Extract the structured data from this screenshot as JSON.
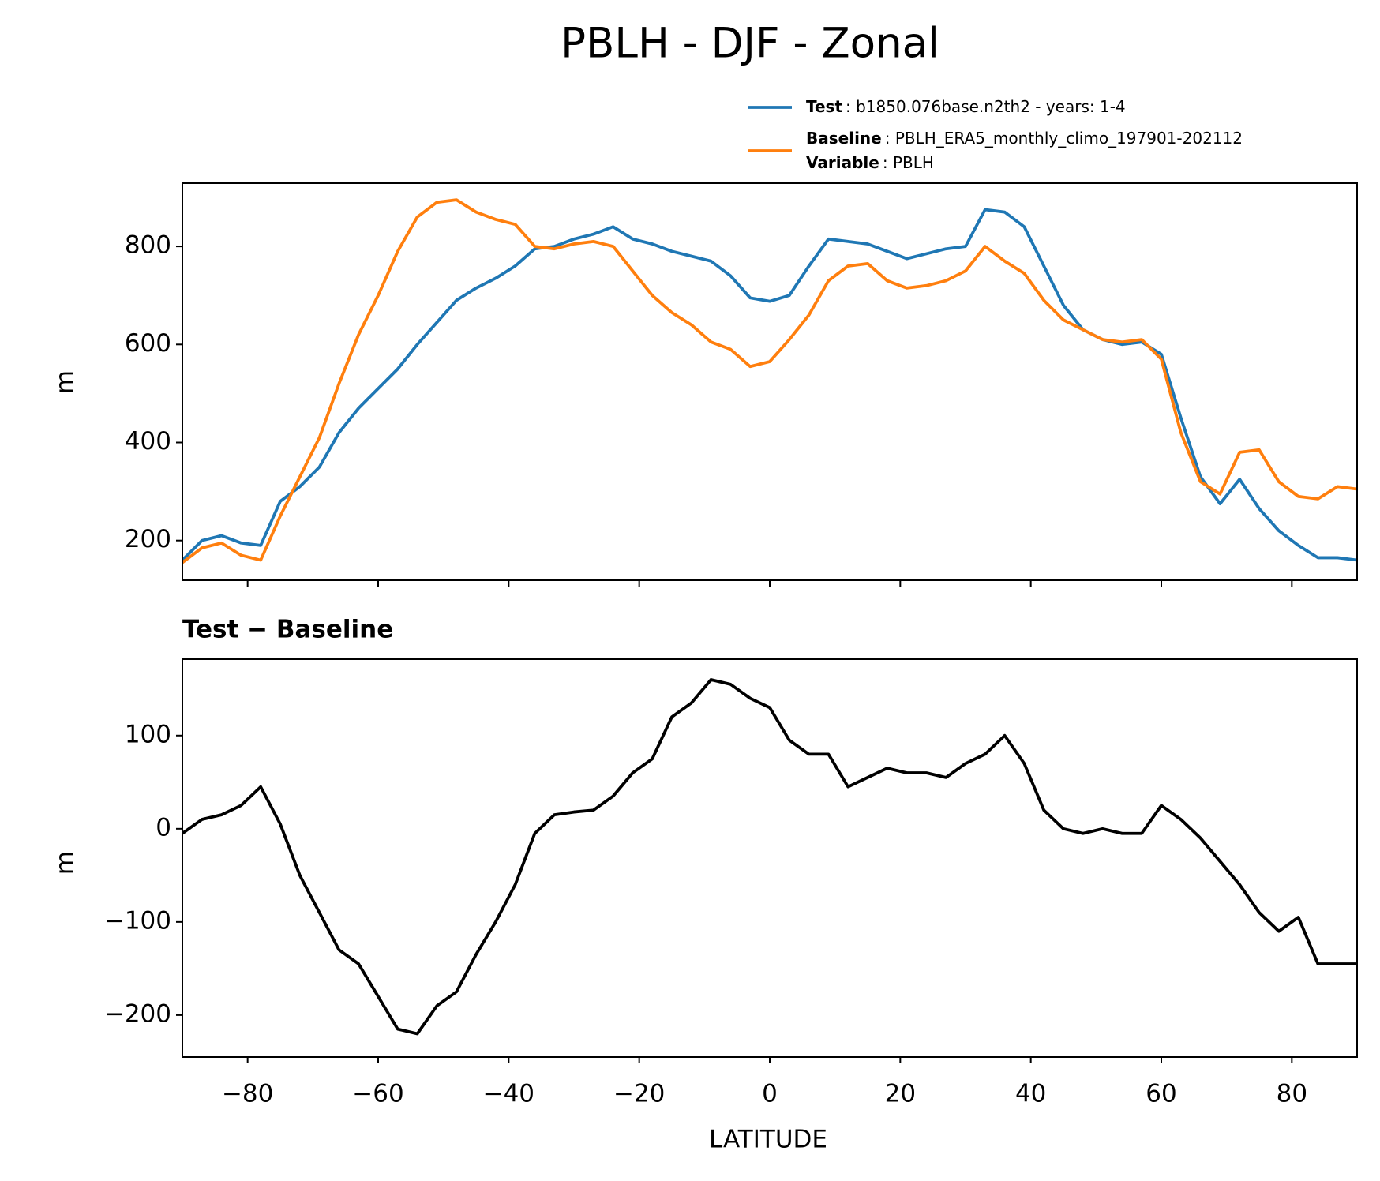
{
  "chart_data": [
    {
      "type": "line",
      "title": "PBLH - DJF - Zonal",
      "ylabel": "m",
      "x": [
        -90,
        -87,
        -84,
        -81,
        -78,
        -75,
        -72,
        -69,
        -66,
        -63,
        -60,
        -57,
        -54,
        -51,
        -48,
        -45,
        -42,
        -39,
        -36,
        -33,
        -30,
        -27,
        -24,
        -21,
        -18,
        -15,
        -12,
        -9,
        -6,
        -3,
        0,
        3,
        6,
        9,
        12,
        15,
        18,
        21,
        24,
        27,
        30,
        33,
        36,
        39,
        42,
        45,
        48,
        51,
        54,
        57,
        60,
        63,
        66,
        69,
        72,
        75,
        78,
        81,
        84,
        87,
        90
      ],
      "series": [
        {
          "name": "Test",
          "description": ": b1850.076base.n2th2 - years: 1-4",
          "color": "#1f77b4",
          "values": [
            160,
            200,
            210,
            195,
            190,
            280,
            310,
            350,
            420,
            470,
            510,
            550,
            600,
            645,
            690,
            715,
            735,
            760,
            795,
            800,
            815,
            825,
            840,
            815,
            805,
            790,
            780,
            770,
            740,
            695,
            688,
            700,
            760,
            815,
            810,
            805,
            790,
            775,
            785,
            795,
            800,
            875,
            870,
            840,
            760,
            680,
            630,
            610,
            600,
            605,
            580,
            450,
            330,
            275,
            325,
            265,
            220,
            190,
            165,
            165,
            160
          ]
        },
        {
          "name": "Baseline",
          "description": ": PBLH_ERA5_monthly_climo_197901-202112",
          "color": "#ff7f0e",
          "values": [
            155,
            185,
            195,
            170,
            160,
            250,
            330,
            410,
            520,
            620,
            700,
            790,
            860,
            890,
            895,
            870,
            855,
            845,
            800,
            795,
            805,
            810,
            800,
            750,
            700,
            665,
            640,
            605,
            590,
            555,
            565,
            610,
            660,
            730,
            760,
            765,
            730,
            715,
            720,
            730,
            750,
            800,
            770,
            745,
            690,
            650,
            630,
            610,
            605,
            610,
            570,
            420,
            320,
            295,
            380,
            385,
            320,
            290,
            285,
            310,
            305
          ]
        }
      ],
      "variable": {
        "name": "Variable",
        "description": ": PBLH"
      },
      "xlim": [
        -90,
        90
      ],
      "xticks": [
        -80,
        -60,
        -40,
        -20,
        0,
        20,
        40,
        60,
        80
      ],
      "ylim": [
        119,
        929
      ],
      "yticks": [
        200,
        400,
        600,
        800
      ]
    },
    {
      "type": "line",
      "title": "Test − Baseline",
      "ylabel": "m",
      "xlabel": "LATITUDE",
      "x": [
        -90,
        -87,
        -84,
        -81,
        -78,
        -75,
        -72,
        -69,
        -66,
        -63,
        -60,
        -57,
        -54,
        -51,
        -48,
        -45,
        -42,
        -39,
        -36,
        -33,
        -30,
        -27,
        -24,
        -21,
        -18,
        -15,
        -12,
        -9,
        -6,
        -3,
        0,
        3,
        6,
        9,
        12,
        15,
        18,
        21,
        24,
        27,
        30,
        33,
        36,
        39,
        42,
        45,
        48,
        51,
        54,
        57,
        60,
        63,
        66,
        69,
        72,
        75,
        78,
        81,
        84,
        87,
        90
      ],
      "color": "#000000",
      "values": [
        -5,
        10,
        15,
        25,
        45,
        5,
        -50,
        -90,
        -130,
        -145,
        -180,
        -215,
        -220,
        -190,
        -175,
        -135,
        -100,
        -60,
        -5,
        15,
        18,
        20,
        35,
        60,
        75,
        120,
        135,
        160,
        155,
        140,
        130,
        95,
        80,
        80,
        45,
        55,
        65,
        60,
        60,
        55,
        70,
        80,
        100,
        70,
        20,
        0,
        -5,
        0,
        -5,
        -5,
        25,
        10,
        -10,
        -35,
        -60,
        -90,
        -110,
        -95,
        -145,
        -145,
        -145
      ],
      "xlim": [
        -90,
        90
      ],
      "xticks": [
        {
          "value": -80,
          "label": "−80"
        },
        {
          "value": -60,
          "label": "−60"
        },
        {
          "value": -40,
          "label": "−40"
        },
        {
          "value": -20,
          "label": "−20"
        },
        0,
        20,
        40,
        60,
        80
      ],
      "ylim": [
        -245,
        182
      ],
      "yticks": [
        {
          "value": -200,
          "label": "−200"
        },
        {
          "value": -100,
          "label": "−100"
        },
        0,
        100
      ]
    }
  ]
}
